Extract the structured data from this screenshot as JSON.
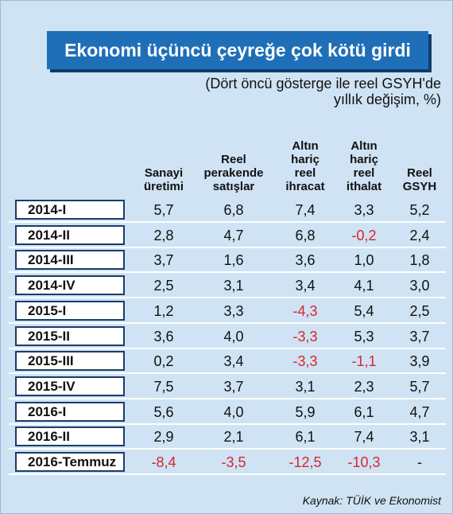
{
  "header": {
    "title": "Ekonomi üçüncü çeyreğe çok kötü girdi",
    "subtitle": [
      "(Dört öncü gösterge ile reel GSYH'de",
      "yıllık değişim, %)"
    ]
  },
  "table": {
    "columns": [
      [
        "Sanayi",
        "üretimi"
      ],
      [
        "Reel",
        "perakende",
        "satışlar"
      ],
      [
        "Altın",
        "hariç",
        "reel",
        "ihracat"
      ],
      [
        "Altın",
        "hariç",
        "reel",
        "ithalat"
      ],
      [
        "Reel",
        "GSYH"
      ]
    ],
    "rows": [
      [
        "2014-I",
        "5,7",
        "6,8",
        "7,4",
        "3,3",
        "5,2"
      ],
      [
        "2014-II",
        "2,8",
        "4,7",
        "6,8",
        "-0,2",
        "2,4"
      ],
      [
        "2014-III",
        "3,7",
        "1,6",
        "3,6",
        "1,0",
        "1,8"
      ],
      [
        "2014-IV",
        "2,5",
        "3,1",
        "3,4",
        "4,1",
        "3,0"
      ],
      [
        "2015-I",
        "1,2",
        "3,3",
        "-4,3",
        "5,4",
        "2,5"
      ],
      [
        "2015-II",
        "3,6",
        "4,0",
        "-3,3",
        "5,3",
        "3,7"
      ],
      [
        "2015-III",
        "0,2",
        "3,4",
        "-3,3",
        "-1,1",
        "3,9"
      ],
      [
        "2015-IV",
        "7,5",
        "3,7",
        "3,1",
        "2,3",
        "5,7"
      ],
      [
        "2016-I",
        "5,6",
        "4,0",
        "5,9",
        "6,1",
        "4,7"
      ],
      [
        "2016-II",
        "2,9",
        "2,1",
        "6,1",
        "7,4",
        "3,1"
      ],
      [
        "2016-Temmuz",
        "-8,4",
        "-3,5",
        "-12,5",
        "-10,3",
        "-"
      ]
    ],
    "negative_color": "#d7262d"
  },
  "source": "Kaynak: TÜİK ve Ekonomist"
}
